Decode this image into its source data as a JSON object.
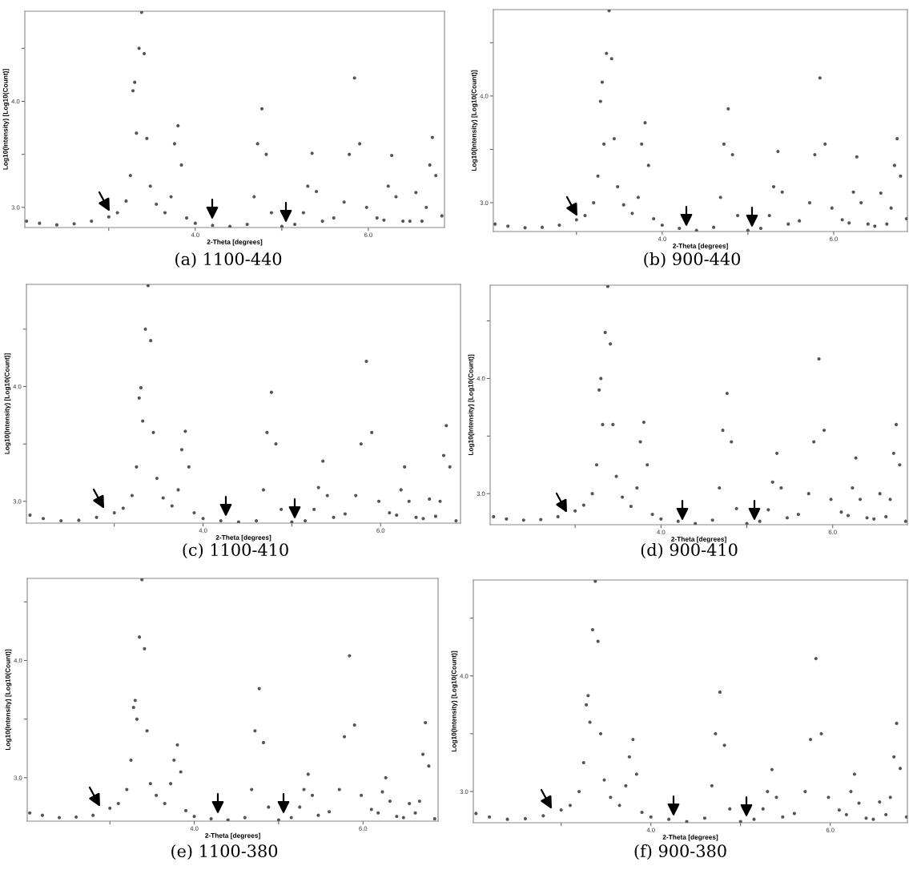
{
  "chart_data": [
    {
      "type": "scatter",
      "title": "(a) 1100-440",
      "xlabel": "2-Theta [degrees]",
      "ylabel": "Log10(Intensity) [Log10(Count)]",
      "grid": false,
      "legend": false,
      "xlim": [
        2.03,
        6.88
      ],
      "ylim": [
        2.81,
        4.85
      ],
      "xticks": [
        {
          "value": 3,
          "label": null
        },
        {
          "value": 4,
          "label": "4.0"
        },
        {
          "value": 5,
          "label": null
        },
        {
          "value": 6,
          "label": "6.0"
        }
      ],
      "yticks": [
        {
          "value": 3,
          "label": "3.0"
        },
        {
          "value": 3.5,
          "label": null
        },
        {
          "value": 4,
          "label": "4.0"
        },
        {
          "value": 4.5,
          "label": null
        }
      ],
      "x": [
        2.05,
        2.2,
        2.4,
        2.6,
        2.8,
        3.0,
        3.1,
        3.2,
        3.25,
        3.28,
        3.3,
        3.32,
        3.35,
        3.38,
        3.41,
        3.44,
        3.48,
        3.55,
        3.65,
        3.72,
        3.76,
        3.8,
        3.84,
        3.9,
        4.0,
        4.2,
        4.4,
        4.6,
        4.68,
        4.72,
        4.77,
        4.82,
        4.88,
        5.0,
        5.15,
        5.25,
        5.3,
        5.35,
        5.4,
        5.47,
        5.6,
        5.72,
        5.78,
        5.84,
        5.9,
        5.98,
        6.1,
        6.18,
        6.23,
        6.27,
        6.32,
        6.4,
        6.48,
        6.55,
        6.62,
        6.67,
        6.71,
        6.74,
        6.78,
        6.85
      ],
      "series": [
        {
          "color": "#555555",
          "values": [
            2.87,
            2.85,
            2.835,
            2.845,
            2.87,
            2.91,
            2.95,
            3.06,
            3.3,
            4.1,
            4.18,
            3.7,
            4.5,
            4.84,
            4.45,
            3.65,
            3.2,
            3.03,
            2.95,
            3.1,
            3.6,
            3.77,
            3.4,
            2.9,
            2.85,
            2.83,
            2.82,
            2.84,
            3.1,
            3.6,
            3.93,
            3.5,
            2.95,
            2.82,
            2.84,
            2.95,
            3.2,
            3.51,
            3.15,
            2.87,
            2.9,
            3.05,
            3.5,
            4.22,
            3.6,
            3.0,
            2.9,
            2.88,
            3.2,
            3.49,
            3.1,
            2.87,
            2.87,
            3.14,
            2.87,
            3.0,
            3.4,
            3.66,
            3.3,
            2.92
          ]
        }
      ]
    },
    {
      "type": "scatter",
      "title": "(b) 900-440",
      "xlabel": "2-Theta [degrees]",
      "ylabel": "Log10(Intensity) [Log10(Count)]",
      "grid": false,
      "legend": false,
      "xlim": [
        2.03,
        6.86
      ],
      "ylim": [
        2.73,
        4.81
      ],
      "xticks": [
        {
          "value": 3,
          "label": null
        },
        {
          "value": 4,
          "label": "4.0"
        },
        {
          "value": 5,
          "label": null
        },
        {
          "value": 6,
          "label": "6.0"
        }
      ],
      "yticks": [
        {
          "value": 3,
          "label": "3.0"
        },
        {
          "value": 3.5,
          "label": null
        },
        {
          "value": 4,
          "label": "4.0"
        },
        {
          "value": 4.5,
          "label": null
        }
      ],
      "x": [
        2.05,
        2.2,
        2.4,
        2.6,
        2.8,
        3.0,
        3.1,
        3.2,
        3.25,
        3.28,
        3.3,
        3.32,
        3.35,
        3.38,
        3.41,
        3.44,
        3.48,
        3.55,
        3.65,
        3.72,
        3.76,
        3.8,
        3.84,
        3.9,
        4.0,
        4.2,
        4.4,
        4.6,
        4.68,
        4.72,
        4.77,
        4.82,
        4.88,
        5.0,
        5.15,
        5.25,
        5.3,
        5.35,
        5.4,
        5.47,
        5.6,
        5.72,
        5.78,
        5.84,
        5.9,
        5.98,
        6.1,
        6.18,
        6.23,
        6.27,
        6.32,
        6.4,
        6.48,
        6.55,
        6.62,
        6.67,
        6.71,
        6.74,
        6.78,
        6.85
      ],
      "series": [
        {
          "color": "#555555",
          "values": [
            2.8,
            2.78,
            2.765,
            2.77,
            2.79,
            2.84,
            2.88,
            3.0,
            3.25,
            3.95,
            4.13,
            3.55,
            4.4,
            4.8,
            4.35,
            3.6,
            3.15,
            2.98,
            2.9,
            3.05,
            3.55,
            3.75,
            3.35,
            2.85,
            2.79,
            2.76,
            2.74,
            2.77,
            3.05,
            3.55,
            3.88,
            3.45,
            2.88,
            2.74,
            2.76,
            2.88,
            3.15,
            3.48,
            3.1,
            2.8,
            2.83,
            3.0,
            3.45,
            4.17,
            3.55,
            2.95,
            2.84,
            2.81,
            3.1,
            3.43,
            3.0,
            2.8,
            2.78,
            3.09,
            2.8,
            2.95,
            3.35,
            3.6,
            3.25,
            2.85
          ]
        }
      ]
    },
    {
      "type": "scatter",
      "title": "(c) 1100-410",
      "xlabel": "2-Theta [degrees]",
      "ylabel": "Log10(Intensity) [Log10(Count)]",
      "grid": false,
      "legend": false,
      "xlim": [
        2.01,
        6.9
      ],
      "ylim": [
        2.81,
        4.89
      ],
      "xticks": [
        {
          "value": 3,
          "label": null
        },
        {
          "value": 4,
          "label": "4.0"
        },
        {
          "value": 5,
          "label": null
        },
        {
          "value": 6,
          "label": "6.0"
        }
      ],
      "yticks": [
        {
          "value": 3,
          "label": "3.0"
        },
        {
          "value": 3.5,
          "label": null
        },
        {
          "value": 4,
          "label": "4.0"
        },
        {
          "value": 4.5,
          "label": null
        }
      ],
      "x": [
        2.05,
        2.2,
        2.4,
        2.6,
        2.8,
        3.0,
        3.1,
        3.2,
        3.25,
        3.28,
        3.3,
        3.32,
        3.35,
        3.38,
        3.41,
        3.44,
        3.48,
        3.55,
        3.65,
        3.72,
        3.76,
        3.8,
        3.84,
        3.9,
        4.0,
        4.2,
        4.4,
        4.6,
        4.68,
        4.72,
        4.77,
        4.82,
        4.88,
        5.0,
        5.15,
        5.25,
        5.3,
        5.35,
        5.4,
        5.47,
        5.6,
        5.72,
        5.78,
        5.84,
        5.9,
        5.98,
        6.1,
        6.18,
        6.23,
        6.27,
        6.32,
        6.4,
        6.48,
        6.55,
        6.62,
        6.67,
        6.71,
        6.74,
        6.78,
        6.85
      ],
      "series": [
        {
          "color": "#555555",
          "values": [
            2.88,
            2.85,
            2.83,
            2.835,
            2.86,
            2.9,
            2.94,
            3.05,
            3.3,
            3.9,
            3.99,
            3.7,
            4.5,
            4.88,
            4.4,
            3.6,
            3.2,
            3.03,
            2.96,
            3.1,
            3.45,
            3.61,
            3.3,
            2.9,
            2.85,
            2.83,
            2.82,
            2.83,
            3.1,
            3.6,
            3.95,
            3.5,
            2.93,
            2.82,
            2.83,
            2.93,
            3.12,
            3.35,
            3.05,
            2.86,
            2.89,
            3.05,
            3.5,
            4.22,
            3.6,
            3.0,
            2.9,
            2.88,
            3.1,
            3.3,
            3.0,
            2.86,
            2.85,
            3.02,
            2.87,
            3.0,
            3.4,
            3.66,
            3.3,
            2.83
          ]
        }
      ]
    },
    {
      "type": "scatter",
      "title": "(d) 900-410",
      "xlabel": "2-Theta [degrees]",
      "ylabel": "Log10(Intensity) [Log10(Count)]",
      "grid": false,
      "legend": false,
      "xlim": [
        2.01,
        6.87
      ],
      "ylim": [
        2.73,
        4.81
      ],
      "xticks": [
        {
          "value": 3,
          "label": null
        },
        {
          "value": 4,
          "label": "4.0"
        },
        {
          "value": 5,
          "label": null
        },
        {
          "value": 6,
          "label": "6.0"
        }
      ],
      "yticks": [
        {
          "value": 3,
          "label": "3.0"
        },
        {
          "value": 3.5,
          "label": null
        },
        {
          "value": 4,
          "label": "4.0"
        },
        {
          "value": 4.5,
          "label": null
        }
      ],
      "x": [
        2.05,
        2.2,
        2.4,
        2.6,
        2.8,
        3.0,
        3.1,
        3.2,
        3.25,
        3.28,
        3.3,
        3.32,
        3.35,
        3.38,
        3.41,
        3.44,
        3.48,
        3.55,
        3.65,
        3.72,
        3.76,
        3.8,
        3.84,
        3.9,
        4.0,
        4.2,
        4.4,
        4.6,
        4.68,
        4.72,
        4.77,
        4.82,
        4.88,
        5.0,
        5.15,
        5.25,
        5.3,
        5.35,
        5.4,
        5.47,
        5.6,
        5.72,
        5.78,
        5.84,
        5.9,
        5.98,
        6.1,
        6.18,
        6.23,
        6.27,
        6.32,
        6.4,
        6.48,
        6.55,
        6.62,
        6.67,
        6.71,
        6.74,
        6.78,
        6.85
      ],
      "series": [
        {
          "color": "#555555",
          "values": [
            2.8,
            2.78,
            2.77,
            2.775,
            2.8,
            2.85,
            2.9,
            3.0,
            3.25,
            3.9,
            4.0,
            3.6,
            4.4,
            4.8,
            4.3,
            3.6,
            3.15,
            2.97,
            2.89,
            3.05,
            3.45,
            3.62,
            3.25,
            2.82,
            2.78,
            2.76,
            2.74,
            2.77,
            3.05,
            3.55,
            3.87,
            3.45,
            2.87,
            2.74,
            2.76,
            2.86,
            3.1,
            3.35,
            3.05,
            2.79,
            2.82,
            3.0,
            3.45,
            4.17,
            3.55,
            2.95,
            2.84,
            2.81,
            3.05,
            3.31,
            2.95,
            2.79,
            2.78,
            3.0,
            2.8,
            2.95,
            3.35,
            3.6,
            3.25,
            2.76
          ]
        }
      ]
    },
    {
      "type": "scatter",
      "title": "(e) 1100-380",
      "xlabel": "2-Theta [degrees]",
      "ylabel": "Log10(Intensity) [Log10(Count)]",
      "grid": false,
      "legend": false,
      "xlim": [
        2.02,
        6.89
      ],
      "ylim": [
        2.63,
        4.7
      ],
      "xticks": [
        {
          "value": 3,
          "label": null
        },
        {
          "value": 4,
          "label": "4.0"
        },
        {
          "value": 5,
          "label": null
        },
        {
          "value": 6,
          "label": "6.0"
        }
      ],
      "yticks": [
        {
          "value": 3,
          "label": "3.0"
        },
        {
          "value": 3.5,
          "label": null
        },
        {
          "value": 4,
          "label": "4.0"
        },
        {
          "value": 4.5,
          "label": null
        }
      ],
      "x": [
        2.05,
        2.2,
        2.4,
        2.6,
        2.8,
        3.0,
        3.1,
        3.2,
        3.25,
        3.28,
        3.3,
        3.32,
        3.35,
        3.38,
        3.41,
        3.44,
        3.48,
        3.55,
        3.65,
        3.72,
        3.76,
        3.8,
        3.84,
        3.9,
        4.0,
        4.2,
        4.4,
        4.6,
        4.68,
        4.72,
        4.77,
        4.82,
        4.88,
        5.0,
        5.15,
        5.25,
        5.3,
        5.35,
        5.4,
        5.47,
        5.6,
        5.72,
        5.78,
        5.84,
        5.9,
        5.98,
        6.1,
        6.18,
        6.23,
        6.27,
        6.32,
        6.4,
        6.48,
        6.55,
        6.62,
        6.67,
        6.71,
        6.74,
        6.78,
        6.85
      ],
      "series": [
        {
          "color": "#555555",
          "values": [
            2.7,
            2.68,
            2.66,
            2.665,
            2.68,
            2.74,
            2.78,
            2.9,
            3.15,
            3.6,
            3.66,
            3.5,
            4.2,
            4.69,
            4.1,
            3.4,
            2.95,
            2.85,
            2.78,
            2.95,
            3.15,
            3.28,
            3.05,
            2.72,
            2.67,
            2.65,
            2.64,
            2.66,
            2.9,
            3.4,
            3.76,
            3.3,
            2.75,
            2.64,
            2.66,
            2.75,
            2.9,
            3.03,
            2.85,
            2.68,
            2.71,
            2.9,
            3.35,
            4.04,
            3.45,
            2.85,
            2.73,
            2.7,
            2.88,
            3.0,
            2.8,
            2.67,
            2.66,
            2.78,
            2.7,
            2.8,
            3.2,
            3.47,
            3.1,
            2.65
          ]
        }
      ]
    },
    {
      "type": "scatter",
      "title": "(f) 900-380",
      "xlabel": "2-Theta [degrees]",
      "ylabel": "Log10(Intensity) [Log10(Count)]",
      "grid": false,
      "legend": false,
      "xlim": [
        2.02,
        6.86
      ],
      "ylim": [
        2.73,
        4.83
      ],
      "xticks": [
        {
          "value": 3,
          "label": null
        },
        {
          "value": 4,
          "label": "4.0"
        },
        {
          "value": 5,
          "label": null
        },
        {
          "value": 6,
          "label": "6.0"
        }
      ],
      "yticks": [
        {
          "value": 3,
          "label": "3.0"
        },
        {
          "value": 3.5,
          "label": null
        },
        {
          "value": 4,
          "label": "4.0"
        },
        {
          "value": 4.5,
          "label": null
        }
      ],
      "x": [
        2.05,
        2.2,
        2.4,
        2.6,
        2.8,
        3.0,
        3.1,
        3.2,
        3.25,
        3.28,
        3.3,
        3.32,
        3.35,
        3.38,
        3.41,
        3.44,
        3.48,
        3.55,
        3.65,
        3.72,
        3.76,
        3.8,
        3.84,
        3.9,
        4.0,
        4.2,
        4.4,
        4.6,
        4.68,
        4.72,
        4.77,
        4.82,
        4.88,
        5.0,
        5.15,
        5.25,
        5.3,
        5.35,
        5.4,
        5.47,
        5.6,
        5.72,
        5.78,
        5.84,
        5.9,
        5.98,
        6.1,
        6.18,
        6.23,
        6.27,
        6.32,
        6.4,
        6.48,
        6.55,
        6.62,
        6.67,
        6.71,
        6.74,
        6.78,
        6.85
      ],
      "series": [
        {
          "color": "#555555",
          "values": [
            2.81,
            2.78,
            2.76,
            2.765,
            2.79,
            2.84,
            2.88,
            3.0,
            3.25,
            3.75,
            3.83,
            3.6,
            4.4,
            4.82,
            4.3,
            3.5,
            3.1,
            2.95,
            2.88,
            3.05,
            3.3,
            3.45,
            3.15,
            2.82,
            2.78,
            2.76,
            2.74,
            2.77,
            3.05,
            3.5,
            3.86,
            3.4,
            2.85,
            2.74,
            2.76,
            2.85,
            3.0,
            3.19,
            2.95,
            2.78,
            2.81,
            3.0,
            3.45,
            4.15,
            3.5,
            2.95,
            2.84,
            2.8,
            3.0,
            3.15,
            2.9,
            2.77,
            2.76,
            2.91,
            2.8,
            2.95,
            3.3,
            3.59,
            3.2,
            2.78
          ]
        }
      ]
    }
  ]
}
